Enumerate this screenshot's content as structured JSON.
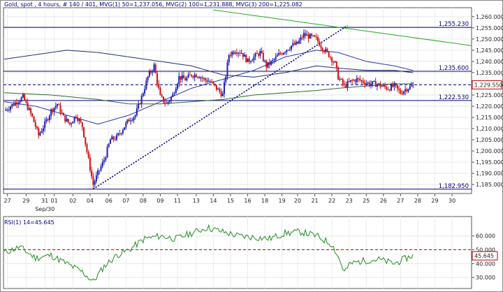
{
  "chart_data": [
    {
      "type": "candlestick",
      "title": "Gold, spot , 4 hours, # 140 / 401, MVG(1) 50=1,237.056, MVG(2) 100=1,231.888, MVG(3) 200=1,225.082",
      "ylim": [
        1181,
        1264
      ],
      "y_ticks": [
        "1,260.000",
        "1,255.000",
        "1,250.000",
        "1,245.000",
        "1,240.000",
        "1,235.000",
        "1,230.000",
        "1,225.000",
        "1,220.000",
        "1,215.000",
        "1,210.000",
        "1,205.000",
        "1,200.000",
        "1,195.000",
        "1,190.000",
        "1,185.000"
      ],
      "x_ticks": [
        {
          "label": "27",
          "idx": 2
        },
        {
          "label": "29",
          "idx": 14
        },
        {
          "label": "31",
          "idx": 26
        },
        {
          "label": "01",
          "idx": 32
        },
        {
          "label": "02",
          "idx": 44
        },
        {
          "label": "04",
          "idx": 55
        },
        {
          "label": "06",
          "idx": 67
        },
        {
          "label": "07",
          "idx": 78
        },
        {
          "label": "08",
          "idx": 89
        },
        {
          "label": "09",
          "idx": 100
        },
        {
          "label": "11",
          "idx": 111
        },
        {
          "label": "13",
          "idx": 123
        },
        {
          "label": "14",
          "idx": 134
        },
        {
          "label": "15",
          "idx": 145
        },
        {
          "label": "16",
          "idx": 156
        },
        {
          "label": "18",
          "idx": 167
        },
        {
          "label": "19",
          "idx": 178
        },
        {
          "label": "20",
          "idx": 188
        },
        {
          "label": "21",
          "idx": 199
        },
        {
          "label": "22",
          "idx": 210
        },
        {
          "label": "23",
          "idx": 221
        },
        {
          "label": "25",
          "idx": 232
        },
        {
          "label": "26",
          "idx": 243
        },
        {
          "label": "27",
          "idx": 254
        },
        {
          "label": "28",
          "idx": 265
        },
        {
          "label": "29",
          "idx": 276
        },
        {
          "label": "30",
          "idx": 287
        }
      ],
      "month_label": {
        "label": "Sep/30",
        "idx": 26
      },
      "levels": [
        {
          "label": "1,255.230",
          "value": 1255.23
        },
        {
          "label": "1,235.600",
          "value": 1235.6
        },
        {
          "label": "1,229.550",
          "value": 1229.55
        },
        {
          "label": "1,222.530",
          "value": 1222.53
        },
        {
          "label": "1,182.950",
          "value": 1182.95
        }
      ],
      "current_price": "1,229.550",
      "current_value": 1229.55,
      "anchors": [
        [
          0,
          1218
        ],
        [
          6,
          1221
        ],
        [
          12,
          1224
        ],
        [
          18,
          1215
        ],
        [
          22,
          1207
        ],
        [
          26,
          1212
        ],
        [
          30,
          1218
        ],
        [
          34,
          1221
        ],
        [
          38,
          1215
        ],
        [
          42,
          1212
        ],
        [
          46,
          1216
        ],
        [
          50,
          1211
        ],
        [
          54,
          1196
        ],
        [
          57,
          1185
        ],
        [
          60,
          1190
        ],
        [
          64,
          1196
        ],
        [
          68,
          1205
        ],
        [
          72,
          1206
        ],
        [
          76,
          1210
        ],
        [
          80,
          1214
        ],
        [
          84,
          1216
        ],
        [
          88,
          1224
        ],
        [
          92,
          1233
        ],
        [
          96,
          1238
        ],
        [
          100,
          1224
        ],
        [
          104,
          1221
        ],
        [
          108,
          1225
        ],
        [
          112,
          1233
        ],
        [
          116,
          1232
        ],
        [
          120,
          1234
        ],
        [
          124,
          1234
        ],
        [
          128,
          1232
        ],
        [
          132,
          1231
        ],
        [
          136,
          1228
        ],
        [
          140,
          1225
        ],
        [
          144,
          1243
        ],
        [
          148,
          1245
        ],
        [
          152,
          1244
        ],
        [
          156,
          1240
        ],
        [
          160,
          1242
        ],
        [
          164,
          1244
        ],
        [
          168,
          1238
        ],
        [
          172,
          1240
        ],
        [
          176,
          1243
        ],
        [
          180,
          1245
        ],
        [
          184,
          1247
        ],
        [
          188,
          1248
        ],
        [
          192,
          1252
        ],
        [
          196,
          1251
        ],
        [
          200,
          1250
        ],
        [
          204,
          1246
        ],
        [
          208,
          1243
        ],
        [
          212,
          1239
        ],
        [
          214,
          1233
        ],
        [
          218,
          1229
        ],
        [
          222,
          1231
        ],
        [
          226,
          1232
        ],
        [
          230,
          1231
        ],
        [
          234,
          1230
        ],
        [
          238,
          1230
        ],
        [
          242,
          1229
        ],
        [
          246,
          1228
        ],
        [
          250,
          1229
        ],
        [
          254,
          1226
        ],
        [
          258,
          1228
        ],
        [
          262,
          1229
        ]
      ],
      "ma_series": [
        {
          "anchors": [
            [
              0,
              1241
            ],
            [
              20,
              1243
            ],
            [
              40,
              1245
            ],
            [
              60,
              1244
            ],
            [
              80,
              1242
            ],
            [
              100,
              1240
            ],
            [
              120,
              1238
            ],
            [
              140,
              1234
            ],
            [
              160,
              1233
            ],
            [
              180,
              1235
            ],
            [
              200,
              1238
            ],
            [
              214,
              1237
            ],
            [
              232,
              1236
            ],
            [
              250,
              1236
            ],
            [
              262,
              1235
            ]
          ],
          "color": "#1f2f6e"
        },
        {
          "anchors": [
            [
              0,
              1222
            ],
            [
              20,
              1220
            ],
            [
              40,
              1216
            ],
            [
              60,
              1212
            ],
            [
              80,
              1216
            ],
            [
              100,
              1222
            ],
            [
              120,
              1228
            ],
            [
              140,
              1232
            ],
            [
              160,
              1236
            ],
            [
              180,
              1242
            ],
            [
              200,
              1245
            ],
            [
              214,
              1244
            ],
            [
              232,
              1240
            ],
            [
              250,
              1238
            ],
            [
              262,
              1236
            ]
          ],
          "color": "#2438a6"
        },
        {
          "anchors": [
            [
              0,
              1226
            ],
            [
              30,
              1225
            ],
            [
              60,
              1223
            ],
            [
              80,
              1221
            ],
            [
              100,
              1221
            ],
            [
              120,
              1222
            ],
            [
              140,
              1223
            ],
            [
              160,
              1225
            ],
            [
              180,
              1226
            ],
            [
              200,
              1227
            ],
            [
              214,
              1228
            ],
            [
              232,
              1229
            ],
            [
              250,
              1230
            ],
            [
              262,
              1230
            ]
          ],
          "color": "#2b6b2b"
        }
      ],
      "trendlines": [
        {
          "from": [
            57,
            1183
          ],
          "to": [
            220,
            1256
          ],
          "color": "#000080",
          "dashed": true
        },
        {
          "from": [
            134,
            1263
          ],
          "to": [
            300,
            1247
          ],
          "color": "#22aa22",
          "dashed": false
        }
      ]
    },
    {
      "type": "line",
      "title": "RSI(1) 14=45.645",
      "ylim": [
        22,
        74
      ],
      "y_ticks": [
        "60.000",
        "50.000",
        "40.000",
        "30.000"
      ],
      "reference_line": {
        "label": "50.000",
        "value": 50
      },
      "current_label": "45.645",
      "current_value": 45.645,
      "anchors": [
        [
          0,
          48
        ],
        [
          10,
          52
        ],
        [
          20,
          44
        ],
        [
          30,
          46
        ],
        [
          40,
          40
        ],
        [
          50,
          34
        ],
        [
          57,
          27
        ],
        [
          64,
          38
        ],
        [
          72,
          46
        ],
        [
          80,
          50
        ],
        [
          90,
          58
        ],
        [
          100,
          60
        ],
        [
          110,
          58
        ],
        [
          120,
          62
        ],
        [
          130,
          66
        ],
        [
          140,
          63
        ],
        [
          150,
          60
        ],
        [
          160,
          59
        ],
        [
          170,
          58
        ],
        [
          180,
          62
        ],
        [
          190,
          63
        ],
        [
          200,
          60
        ],
        [
          210,
          54
        ],
        [
          214,
          45
        ],
        [
          218,
          34
        ],
        [
          222,
          40
        ],
        [
          230,
          42
        ],
        [
          240,
          43
        ],
        [
          250,
          40
        ],
        [
          258,
          44
        ],
        [
          262,
          46
        ]
      ],
      "color": "#228b22"
    }
  ]
}
